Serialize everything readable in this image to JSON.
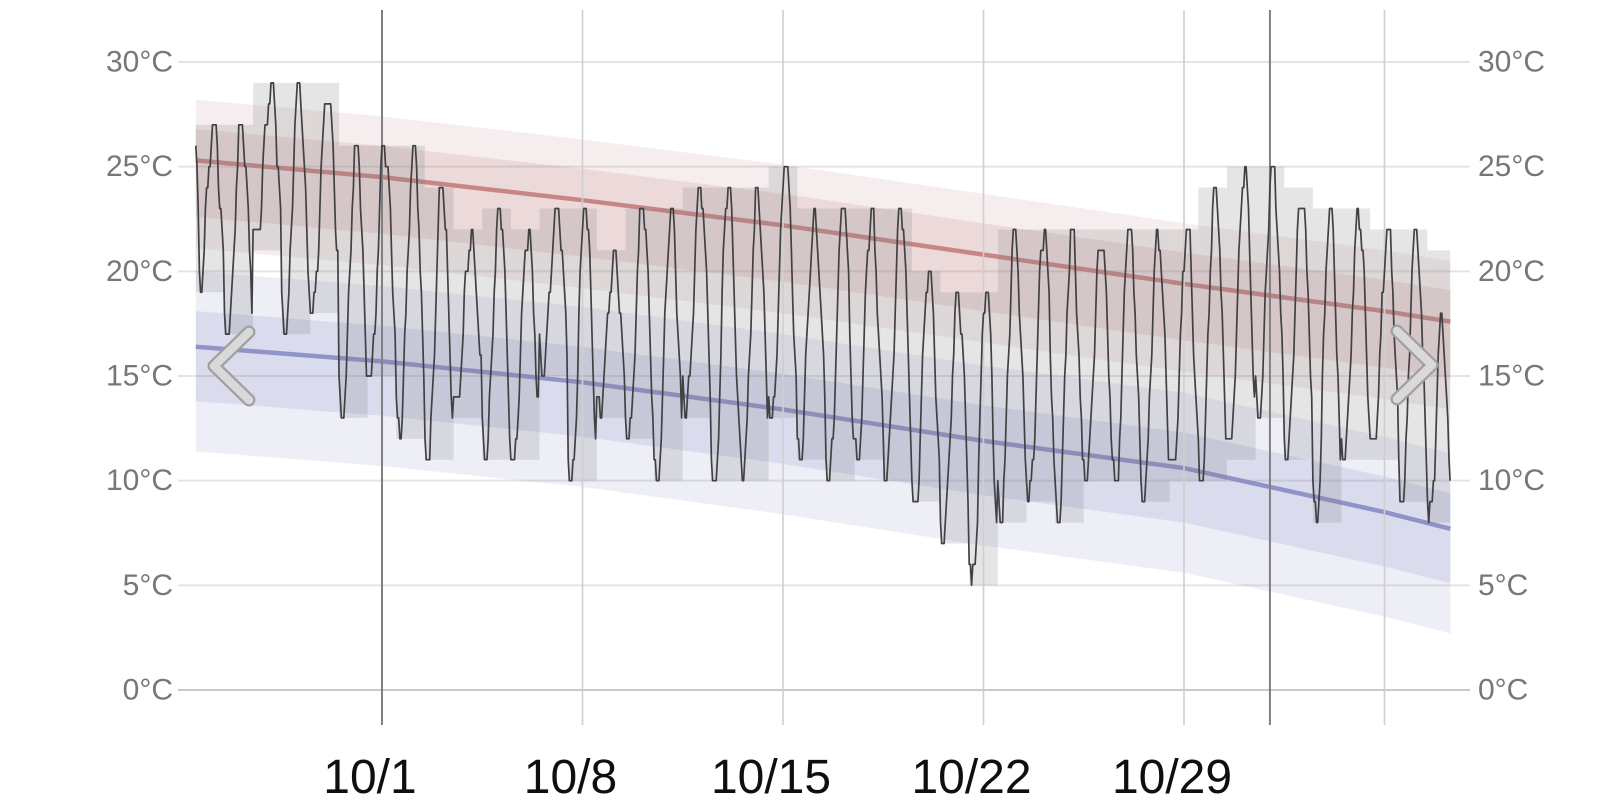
{
  "chart_data": {
    "type": "line",
    "title": "",
    "y_axis": {
      "unit": "°C",
      "tick_values": [
        0,
        5,
        10,
        15,
        20,
        25,
        30
      ],
      "tick_labels": [
        "0°C",
        "5°C",
        "10°C",
        "15°C",
        "20°C",
        "25°C",
        "30°C"
      ],
      "sides": "both",
      "range": [
        0,
        30
      ]
    },
    "x_axis": {
      "tick_labels": [
        "10/1",
        "10/8",
        "10/15",
        "10/22",
        "10/29"
      ],
      "tick_label_day_offsets": [
        0,
        7,
        14,
        21,
        28
      ],
      "weekly_gridline_day_offsets": [
        0,
        7,
        14,
        21,
        28,
        35
      ],
      "month_gridline_day_offsets": [
        0,
        31
      ],
      "month_gridline_dates": [
        "10/1",
        "11/1"
      ],
      "data_start_day_offset": -6.5,
      "data_end_day_offset": 37.29
    },
    "series": {
      "daily_range": {
        "dates": [
          "9/25",
          "9/26",
          "9/27",
          "9/28",
          "9/29",
          "9/30",
          "10/1",
          "10/2",
          "10/3",
          "10/4",
          "10/5",
          "10/6",
          "10/7",
          "10/8",
          "10/9",
          "10/10",
          "10/11",
          "10/12",
          "10/13",
          "10/14",
          "10/15",
          "10/16",
          "10/17",
          "10/18",
          "10/19",
          "10/20",
          "10/21",
          "10/22",
          "10/23",
          "10/24",
          "10/25",
          "10/26",
          "10/27",
          "10/28",
          "10/29",
          "10/30",
          "10/31",
          "11/1",
          "11/2",
          "11/3",
          "11/4",
          "11/5",
          "11/6",
          "11/7"
        ],
        "high_c": [
          27,
          27,
          29,
          29,
          29,
          26,
          26,
          26,
          24,
          22,
          23,
          22,
          23,
          23,
          21,
          23,
          23,
          24,
          24,
          24,
          25,
          23,
          23,
          23,
          23,
          20,
          19,
          19,
          22,
          22,
          22,
          22,
          22,
          22,
          22,
          24,
          25,
          25,
          24,
          23,
          23,
          22,
          22,
          21
        ],
        "low_c": [
          19,
          17,
          21,
          17,
          18,
          13,
          15,
          12,
          11,
          13,
          11,
          11,
          15,
          10,
          13,
          12,
          10,
          13,
          10,
          10,
          13,
          11,
          10,
          11,
          10,
          9,
          7,
          5,
          8,
          9,
          8,
          10,
          10,
          9,
          10,
          10,
          11,
          13,
          11,
          8,
          11,
          11,
          9,
          8
        ]
      },
      "climate_avg_high": {
        "anchors_day_from_oct1": [
          -6.5,
          0,
          7,
          14,
          21,
          28,
          35,
          37.3
        ],
        "values_c": [
          25.3,
          24.5,
          23.4,
          22.2,
          20.8,
          19.4,
          18.1,
          17.6
        ]
      },
      "climate_avg_low": {
        "anchors_day_from_oct1": [
          -6.5,
          0,
          7,
          14,
          21,
          28,
          35,
          37.3
        ],
        "values_c": [
          16.4,
          15.7,
          14.7,
          13.4,
          11.9,
          10.6,
          8.5,
          7.7
        ]
      },
      "bands": {
        "high_inner_offsets_c": [
          1.5,
          -2.7
        ],
        "high_outer_offsets_c": [
          2.9,
          -4.2
        ],
        "low_inner_offsets_c": [
          1.7,
          -2.6
        ],
        "low_outer_offsets_c": [
          3.6,
          -5.0
        ]
      },
      "actual_hourly": {
        "description": "observed hourly temperature, quantized to 1°C steps, oscillating daily between daily_range low and high",
        "diurnal_min_hour": 5,
        "diurnal_max_hour": 14.5,
        "quantization_c": 1,
        "start_value_c": 26,
        "end_value_c": 10,
        "last_day_end_hour": 19
      }
    },
    "colors": {
      "avg_high_line": "#c58282",
      "avg_low_line": "#8c8fc5",
      "high_band_base": "#bb7878",
      "low_band_base": "#787dbe",
      "band_outer_alpha": 0.13,
      "band_inner_alpha": 0.17,
      "day_range_box": "#7d7d80",
      "day_range_box_alpha": 0.2,
      "actual_line": "#414144",
      "grid_major": "#e4e4e4",
      "grid_zero": "#c9c9c9",
      "grid_weekly": "#cfcfd1",
      "grid_month": "#808084",
      "y_label": "#77777b",
      "x_label": "#0f0f10",
      "chevron_outer": "#a0a0a0",
      "chevron_inner": "#d9d9d9"
    },
    "legend": "none",
    "grid": "on"
  },
  "controls": {
    "previous": "chevron-left",
    "next": "chevron-right"
  }
}
